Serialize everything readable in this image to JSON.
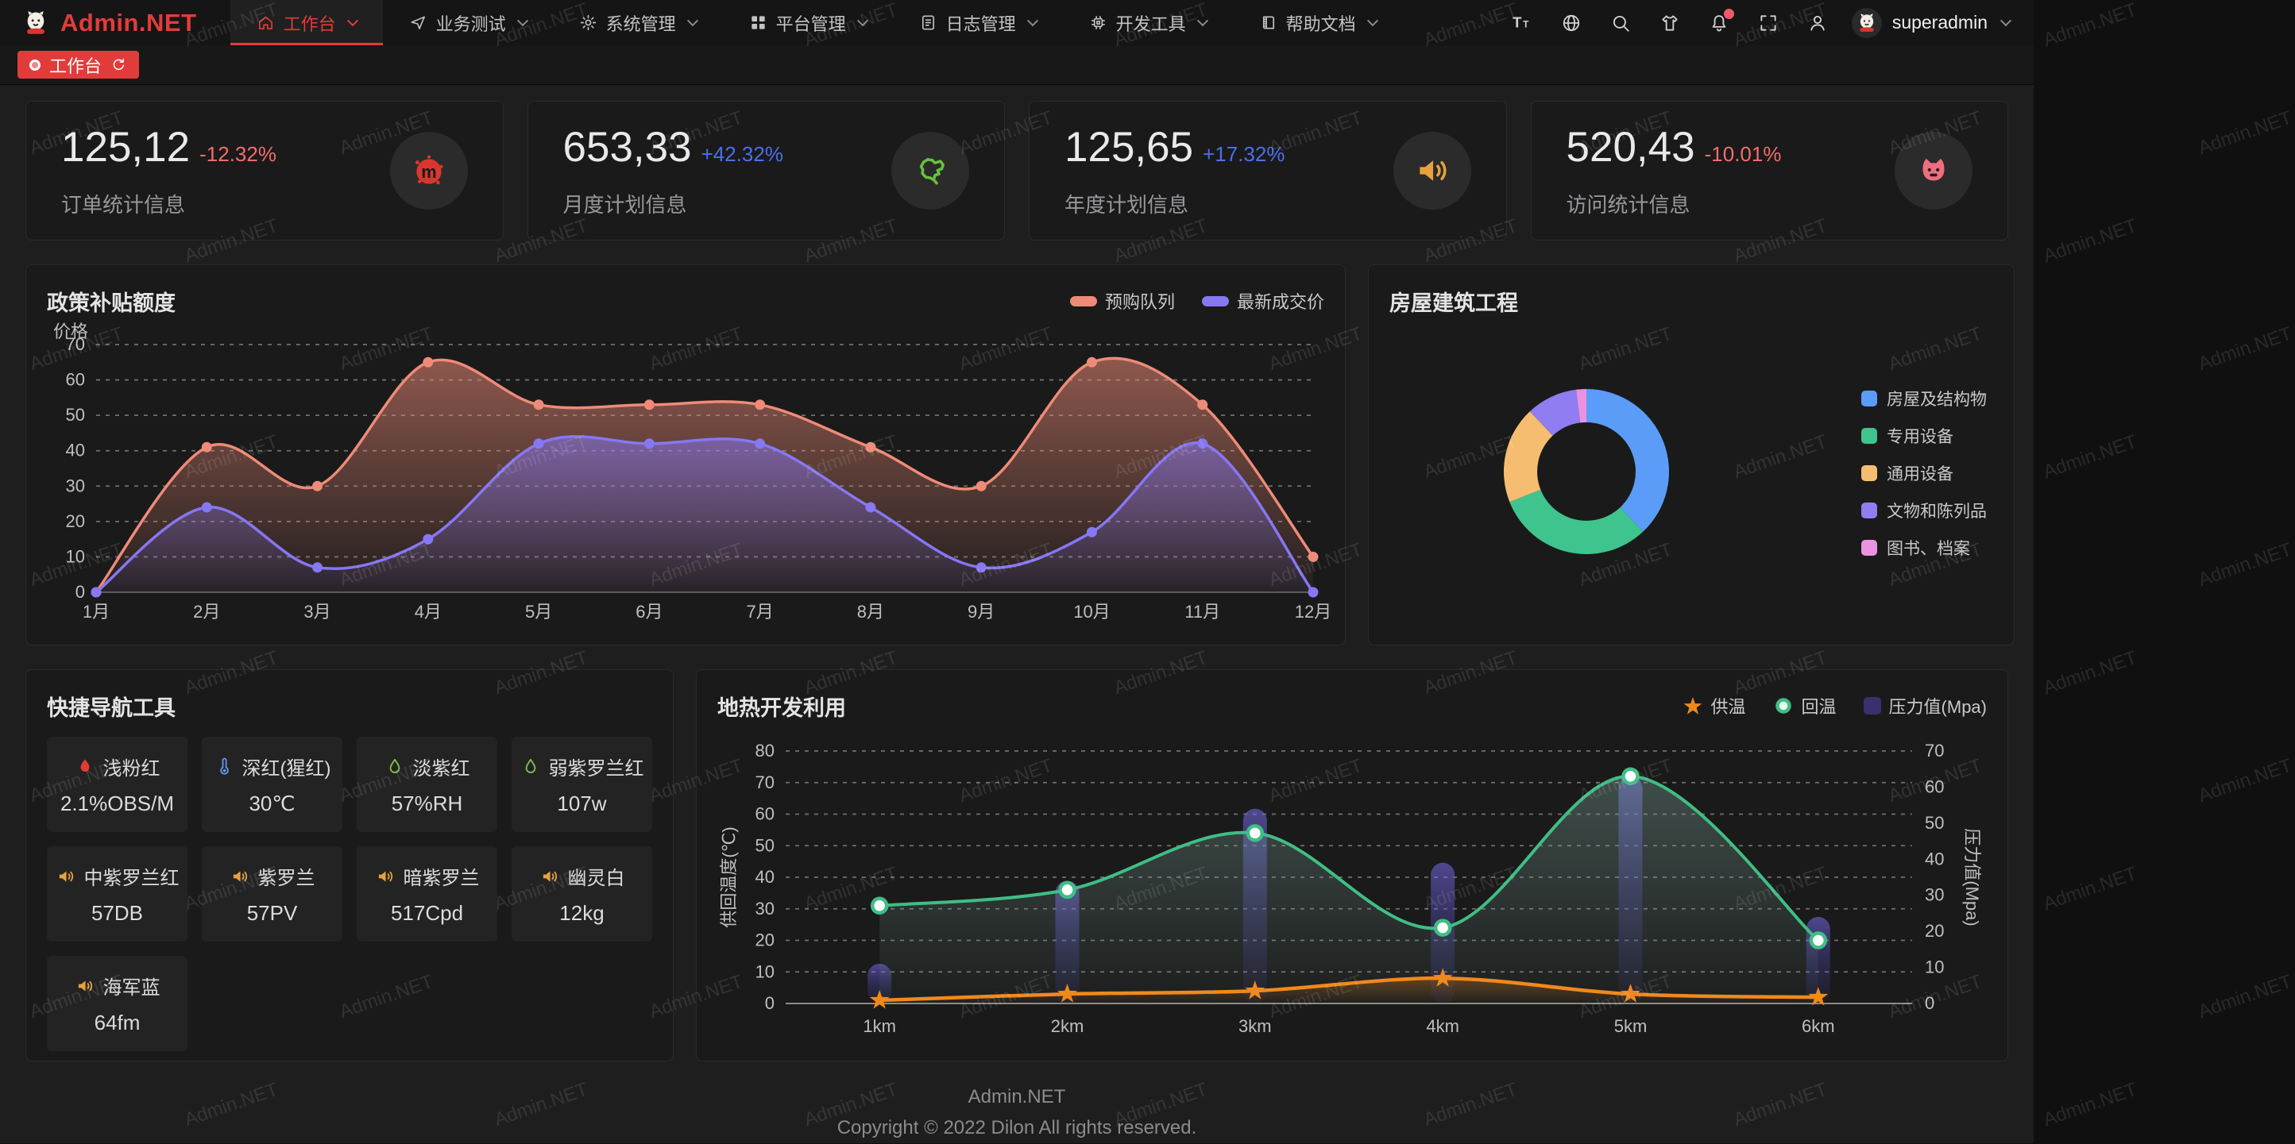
{
  "watermark": {
    "text": "Admin.NET"
  },
  "header": {
    "brand": "Admin.NET",
    "nav": [
      {
        "key": "workbench",
        "label": "工作台",
        "icon": "home-icon",
        "active": true
      },
      {
        "key": "business-test",
        "label": "业务测试",
        "icon": "send-icon",
        "active": false
      },
      {
        "key": "system-mgmt",
        "label": "系统管理",
        "icon": "gear-icon",
        "active": false
      },
      {
        "key": "platform-mgmt",
        "label": "平台管理",
        "icon": "grid-icon",
        "active": false
      },
      {
        "key": "log-mgmt",
        "label": "日志管理",
        "icon": "document-icon",
        "active": false
      },
      {
        "key": "dev-tools",
        "label": "开发工具",
        "icon": "chip-icon",
        "active": false
      },
      {
        "key": "help-docs",
        "label": "帮助文档",
        "icon": "book-icon",
        "active": false
      }
    ],
    "tools": [
      {
        "key": "font-size",
        "icon": "font-size-icon",
        "badge": false
      },
      {
        "key": "language",
        "icon": "globe-icon",
        "badge": false
      },
      {
        "key": "search",
        "icon": "search-icon",
        "badge": false
      },
      {
        "key": "theme",
        "icon": "shirt-icon",
        "badge": false
      },
      {
        "key": "notifications",
        "icon": "bell-icon",
        "badge": true
      },
      {
        "key": "fullscreen",
        "icon": "fullscreen-icon",
        "badge": false
      },
      {
        "key": "profile",
        "icon": "user-icon",
        "badge": false
      }
    ],
    "user": {
      "name": "superadmin"
    }
  },
  "tabbar": {
    "tabs": [
      {
        "label": "工作台",
        "active": true
      }
    ]
  },
  "stats": [
    {
      "key": "orders",
      "value": "125,12",
      "delta": "-12.32%",
      "trend": "down",
      "label": "订单统计信息",
      "icon": "splat-icon",
      "icon_color": "#d9372e"
    },
    {
      "key": "monthly-plan",
      "value": "653,33",
      "delta": "+42.32%",
      "trend": "up",
      "label": "月度计划信息",
      "icon": "china-map-icon",
      "icon_color": "#67c23a"
    },
    {
      "key": "yearly-plan",
      "value": "125,65",
      "delta": "+17.32%",
      "trend": "up",
      "label": "年度计划信息",
      "icon": "speaker-icon",
      "icon_color": "#e6a23c"
    },
    {
      "key": "visits",
      "value": "520,43",
      "delta": "-10.01%",
      "trend": "down",
      "label": "访问统计信息",
      "icon": "cat-icon",
      "icon_color": "#f06d80"
    }
  ],
  "quick_nav": {
    "title": "快捷导航工具",
    "items": [
      {
        "key": "light-pink",
        "label": "浅粉红",
        "value": "2.1%OBS/M",
        "icon": "fire-icon",
        "icon_color": "#e23c34"
      },
      {
        "key": "crimson",
        "label": "深红(猩红)",
        "value": "30℃",
        "icon": "thermometer-icon",
        "icon_color": "#6594f2"
      },
      {
        "key": "pale-violet",
        "label": "淡紫红",
        "value": "57%RH",
        "icon": "drop-icon",
        "icon_color": "#7ec050"
      },
      {
        "key": "weak-violet-red",
        "label": "弱紫罗兰红",
        "value": "107w",
        "icon": "drop-icon",
        "icon_color": "#7ec050"
      },
      {
        "key": "medium-violet-red",
        "label": "中紫罗兰红",
        "value": "57DB",
        "icon": "speaker-icon",
        "icon_color": "#e6a23c"
      },
      {
        "key": "violet",
        "label": "紫罗兰",
        "value": "57PV",
        "icon": "speaker-icon",
        "icon_color": "#e6a23c"
      },
      {
        "key": "dark-violet",
        "label": "暗紫罗兰",
        "value": "517Cpd",
        "icon": "speaker-icon",
        "icon_color": "#e6a23c"
      },
      {
        "key": "ghost-white",
        "label": "幽灵白",
        "value": "12kg",
        "icon": "speaker-icon",
        "icon_color": "#e6a23c"
      },
      {
        "key": "navy-blue",
        "label": "海军蓝",
        "value": "64fm",
        "icon": "speaker-icon",
        "icon_color": "#e6a23c"
      }
    ]
  },
  "footer": {
    "line1": "Admin.NET",
    "line2": "Copyright © 2022 Dilon All rights reserved."
  },
  "chart_data": [
    {
      "id": "subsidy",
      "type": "line",
      "title": "政策补贴额度",
      "ylabel": "价格",
      "ylim": [
        0,
        70
      ],
      "yticks": [
        0,
        10,
        20,
        30,
        40,
        50,
        60,
        70
      ],
      "grid": "dashed",
      "legend_position": "top-right",
      "categories": [
        "1月",
        "2月",
        "3月",
        "4月",
        "5月",
        "6月",
        "7月",
        "8月",
        "9月",
        "10月",
        "11月",
        "12月"
      ],
      "series": [
        {
          "name": "预购队列",
          "color": "#ee8b78",
          "values": [
            0,
            41,
            30,
            65,
            53,
            53,
            53,
            41,
            30,
            65,
            53,
            10
          ]
        },
        {
          "name": "最新成交价",
          "color": "#8677f3",
          "values": [
            0,
            24,
            7,
            15,
            42,
            42,
            42,
            24,
            7,
            17,
            42,
            0
          ]
        }
      ]
    },
    {
      "id": "housing",
      "type": "pie",
      "title": "房屋建筑工程",
      "legend_position": "right",
      "slices": [
        {
          "name": "房屋及结构物",
          "value": 38,
          "color": "#5b9cf8"
        },
        {
          "name": "专用设备",
          "value": 31,
          "color": "#3ec48c"
        },
        {
          "name": "通用设备",
          "value": 19,
          "color": "#f6bd70"
        },
        {
          "name": "文物和陈列品",
          "value": 10,
          "color": "#8f7df1"
        },
        {
          "name": "图书、档案",
          "value": 2,
          "color": "#eb93e0"
        }
      ]
    },
    {
      "id": "geothermal",
      "type": "line+bar",
      "title": "地热开发利用",
      "grid": "dashed",
      "legend_position": "top-right",
      "categories": [
        "1km",
        "2km",
        "3km",
        "4km",
        "5km",
        "6km"
      ],
      "left_axis": {
        "label": "供回温度(℃)",
        "min": 0,
        "max": 80,
        "ticks": [
          0,
          10,
          20,
          30,
          40,
          50,
          60,
          70,
          80
        ]
      },
      "right_axis": {
        "label": "压力值(Mpa)",
        "min": 0,
        "max": 70,
        "ticks": [
          0,
          10,
          20,
          30,
          40,
          50,
          60,
          70
        ]
      },
      "series": [
        {
          "name": "供温",
          "type": "line",
          "axis": "left",
          "marker": "star",
          "color": "#f0891b",
          "values": [
            1,
            3,
            4,
            8,
            3,
            2
          ]
        },
        {
          "name": "回温",
          "type": "line",
          "axis": "left",
          "marker": "circle",
          "color": "#3fbe84",
          "values": [
            31,
            36,
            54,
            24,
            72,
            20
          ]
        },
        {
          "name": "压力值(Mpa)",
          "type": "bar",
          "axis": "right",
          "marker": "square",
          "color": "#37316e",
          "values": [
            11,
            34,
            54,
            39,
            63,
            24
          ]
        }
      ]
    }
  ]
}
